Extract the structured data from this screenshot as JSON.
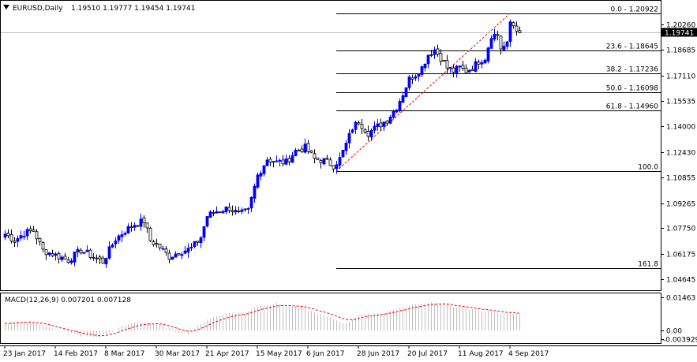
{
  "header": {
    "symbol_label": "EURUSD,Daily",
    "ohlc": "1.19510 1.19777 1.19454 1.19741"
  },
  "macd_header": "MACD(12,26,9) 0.007201 0.007128",
  "colors": {
    "bull": "#0000ff",
    "bear": "#000000",
    "bull_body": "#0000ff",
    "bear_body": "#ffffff",
    "fib": "#000000",
    "trend": "#ff0000",
    "macd_hist": "#c0c0c0",
    "macd_signal": "#ff0000",
    "current_price_bg": "#000000"
  },
  "chart_data": [
    {
      "type": "candlestick",
      "title": "EURUSD,Daily",
      "ylim": [
        1.0395,
        1.2165
      ],
      "y_ticks": [
        "1.20260",
        "1.18685",
        "1.17110",
        "1.15535",
        "1.14000",
        "1.12430",
        "1.10855",
        "1.09265",
        "1.07750",
        "1.06175",
        "1.04645"
      ],
      "x_ticks": [
        {
          "label": "23 Jan 2017",
          "index": 0
        },
        {
          "label": "14 Feb 2017",
          "index": 16
        },
        {
          "label": "8 Mar 2017",
          "index": 32
        },
        {
          "label": "30 Mar 2017",
          "index": 48
        },
        {
          "label": "21 Apr 2017",
          "index": 64
        },
        {
          "label": "15 May 2017",
          "index": 80
        },
        {
          "label": "6 Jun 2017",
          "index": 96
        },
        {
          "label": "28 Jun 2017",
          "index": 112
        },
        {
          "label": "20 Jul 2017",
          "index": 128
        },
        {
          "label": "11 Aug 2017",
          "index": 144
        },
        {
          "label": "4 Sep 2017",
          "index": 160
        }
      ],
      "current_price": "1.19741",
      "fibonacci": [
        {
          "label": "0.0 - 1.20922",
          "price": 1.20922
        },
        {
          "label": "23.6 - 1.18645",
          "price": 1.18645
        },
        {
          "label": "38.2 - 1.17236",
          "price": 1.17236
        },
        {
          "label": "50.0 - 1.16098",
          "price": 1.16098
        },
        {
          "label": "61.8 - 1.14960",
          "price": 1.1496
        },
        {
          "label": "100.0",
          "price": 1.1125
        },
        {
          "label": "161.8",
          "price": 1.053
        }
      ],
      "fib_start_index": 105,
      "trendline": {
        "from_index": 105,
        "from_price": 1.1125,
        "to_index": 160,
        "to_price": 1.2092
      },
      "anchors": [
        [
          0,
          1.074
        ],
        [
          3,
          1.07
        ],
        [
          6,
          1.0745
        ],
        [
          9,
          1.076
        ],
        [
          12,
          1.064
        ],
        [
          16,
          1.061
        ],
        [
          20,
          1.058
        ],
        [
          24,
          1.064
        ],
        [
          28,
          1.06
        ],
        [
          31,
          1.057
        ],
        [
          35,
          1.071
        ],
        [
          38,
          1.076
        ],
        [
          41,
          1.08
        ],
        [
          44,
          1.082
        ],
        [
          46,
          1.07
        ],
        [
          49,
          1.066
        ],
        [
          52,
          1.06
        ],
        [
          55,
          1.063
        ],
        [
          59,
          1.065
        ],
        [
          62,
          1.072
        ],
        [
          64,
          1.085
        ],
        [
          67,
          1.088
        ],
        [
          71,
          1.09
        ],
        [
          74,
          1.086
        ],
        [
          77,
          1.088
        ],
        [
          80,
          1.11
        ],
        [
          83,
          1.12
        ],
        [
          86,
          1.118
        ],
        [
          89,
          1.118
        ],
        [
          92,
          1.125
        ],
        [
          95,
          1.127
        ],
        [
          98,
          1.12
        ],
        [
          101,
          1.119
        ],
        [
          104,
          1.116
        ],
        [
          106,
          1.12
        ],
        [
          108,
          1.129
        ],
        [
          110,
          1.139
        ],
        [
          112,
          1.143
        ],
        [
          115,
          1.136
        ],
        [
          118,
          1.14
        ],
        [
          121,
          1.144
        ],
        [
          124,
          1.152
        ],
        [
          126,
          1.16
        ],
        [
          128,
          1.169
        ],
        [
          130,
          1.172
        ],
        [
          132,
          1.176
        ],
        [
          134,
          1.184
        ],
        [
          136,
          1.187
        ],
        [
          138,
          1.182
        ],
        [
          140,
          1.176
        ],
        [
          142,
          1.174
        ],
        [
          144,
          1.176
        ],
        [
          146,
          1.174
        ],
        [
          148,
          1.176
        ],
        [
          150,
          1.18
        ],
        [
          152,
          1.182
        ],
        [
          154,
          1.196
        ],
        [
          156,
          1.196
        ],
        [
          157,
          1.188
        ],
        [
          159,
          1.19
        ],
        [
          160,
          1.204
        ],
        [
          162,
          1.2
        ],
        [
          163,
          1.1974
        ]
      ],
      "macd": {
        "ylim": [
          -0.004,
          0.0155
        ],
        "y_ticks": [
          "0.01463",
          "0.00",
          "-0.003929"
        ],
        "anchors": [
          [
            0,
            0.003
          ],
          [
            8,
            0.004
          ],
          [
            16,
            0.0005
          ],
          [
            24,
            -0.0025
          ],
          [
            30,
            -0.003
          ],
          [
            36,
            0.001
          ],
          [
            42,
            0.004
          ],
          [
            48,
            0.003
          ],
          [
            54,
            -0.0005
          ],
          [
            58,
            -0.0015
          ],
          [
            64,
            0.005
          ],
          [
            70,
            0.0075
          ],
          [
            76,
            0.008
          ],
          [
            80,
            0.011
          ],
          [
            86,
            0.012
          ],
          [
            94,
            0.01
          ],
          [
            104,
            0.005
          ],
          [
            108,
            0.003
          ],
          [
            112,
            0.007
          ],
          [
            118,
            0.0075
          ],
          [
            124,
            0.0095
          ],
          [
            128,
            0.011
          ],
          [
            134,
            0.0125
          ],
          [
            138,
            0.012
          ],
          [
            144,
            0.01
          ],
          [
            150,
            0.009
          ],
          [
            156,
            0.008
          ],
          [
            160,
            0.0075
          ],
          [
            163,
            0.0072
          ]
        ]
      }
    }
  ]
}
